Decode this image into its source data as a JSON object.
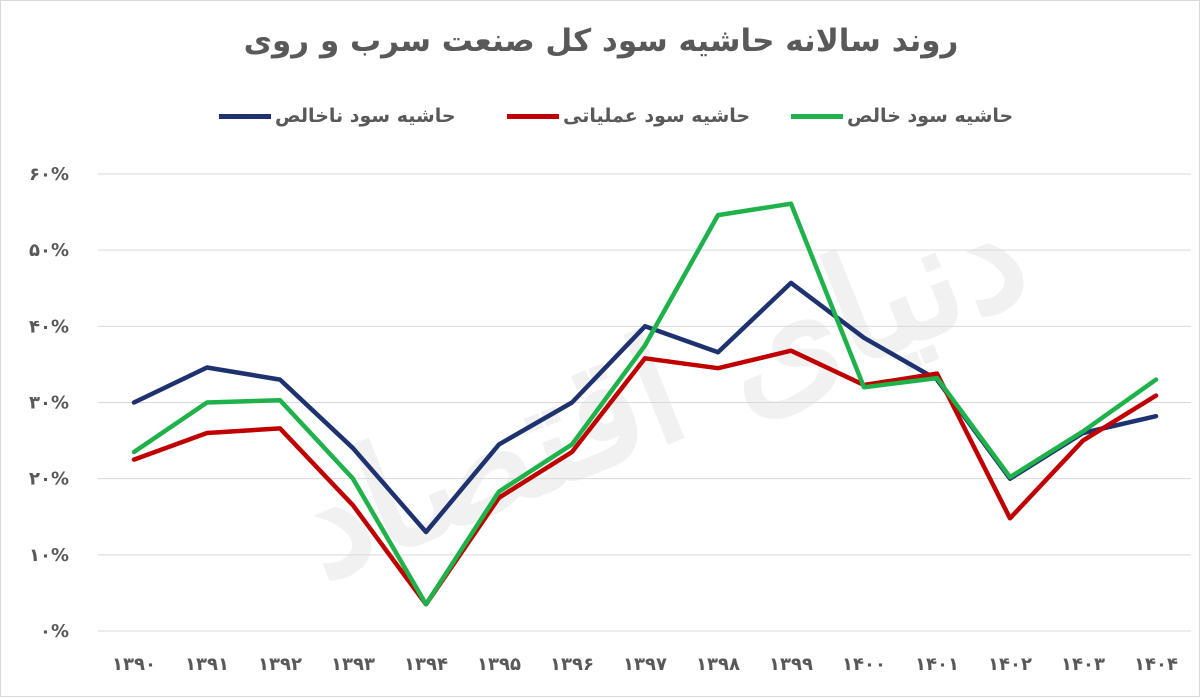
{
  "chart_data": {
    "type": "line",
    "title": "روند سالانه حاشیه سود کل صنعت سرب و روی",
    "x": [
      "۱۳۹۰",
      "۱۳۹۱",
      "۱۳۹۲",
      "۱۳۹۳",
      "۱۳۹۴",
      "۱۳۹۵",
      "۱۳۹۶",
      "۱۳۹۷",
      "۱۳۹۸",
      "۱۳۹۹",
      "۱۴۰۰",
      "۱۴۰۱",
      "۱۴۰۲",
      "۱۴۰۳",
      "۱۴۰۴"
    ],
    "y_ticks": [
      "۰%",
      "۱۰%",
      "۲۰%",
      "۳۰%",
      "۴۰%",
      "۵۰%",
      "۶۰%"
    ],
    "ylim": [
      0,
      60
    ],
    "grid": true,
    "legend_position": "top",
    "series": [
      {
        "name": "حاشیه سود ناخالص",
        "color": "#1f3270",
        "values": [
          30,
          34.6,
          33,
          24,
          13,
          24.5,
          30,
          40,
          36.6,
          45.7,
          38.5,
          33,
          20,
          26,
          28.2
        ]
      },
      {
        "name": "حاشیه سود عملیاتی",
        "color": "#c00000",
        "values": [
          22.5,
          26,
          26.6,
          16.5,
          3.5,
          17.5,
          23.5,
          35.8,
          34.5,
          36.8,
          32.3,
          33.8,
          14.8,
          25,
          30.9
        ]
      },
      {
        "name": "حاشیه سود خالص",
        "color": "#1fb24a",
        "values": [
          23.5,
          30,
          30.3,
          20,
          3.5,
          18.3,
          24.5,
          37.5,
          54.6,
          56.1,
          32,
          33.2,
          20.2,
          26.2,
          33
        ]
      }
    ]
  },
  "watermark": {
    "text": "دنیای اقتصاد"
  }
}
